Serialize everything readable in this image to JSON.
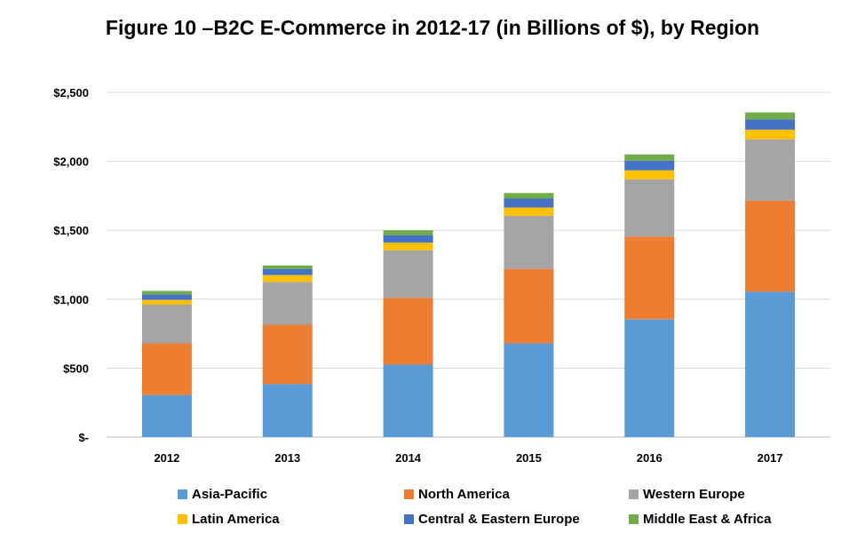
{
  "title": "Figure 10 –B2C E-Commerce in 2012-17 (in Billions of $), by Region",
  "chart_data": {
    "type": "bar",
    "stacked": true,
    "categories": [
      "2012",
      "2013",
      "2014",
      "2015",
      "2016",
      "2017"
    ],
    "ylim": [
      0,
      2500
    ],
    "yticks": [
      0,
      500,
      1000,
      1500,
      2000,
      2500
    ],
    "ytick_labels": [
      "$-",
      "$500",
      "$1,000",
      "$1,500",
      "$2,000",
      "$2,500"
    ],
    "grid": true,
    "legend_position": "bottom",
    "series": [
      {
        "name": "Asia-Pacific",
        "color": "#5B9BD5",
        "values": [
          305,
          385,
          525,
          680,
          855,
          1055
        ]
      },
      {
        "name": "North America",
        "color": "#ED7D31",
        "values": [
          375,
          430,
          485,
          540,
          600,
          660
        ]
      },
      {
        "name": "Western Europe",
        "color": "#A5A5A5",
        "values": [
          280,
          310,
          345,
          385,
          415,
          445
        ]
      },
      {
        "name": "Latin America",
        "color": "#FFC000",
        "values": [
          35,
          50,
          55,
          60,
          65,
          70
        ]
      },
      {
        "name": "Central & Eastern Europe",
        "color": "#4472C4",
        "values": [
          40,
          45,
          55,
          65,
          70,
          75
        ]
      },
      {
        "name": "Middle East & Africa",
        "color": "#70AD47",
        "values": [
          25,
          25,
          35,
          40,
          45,
          50
        ]
      }
    ]
  }
}
